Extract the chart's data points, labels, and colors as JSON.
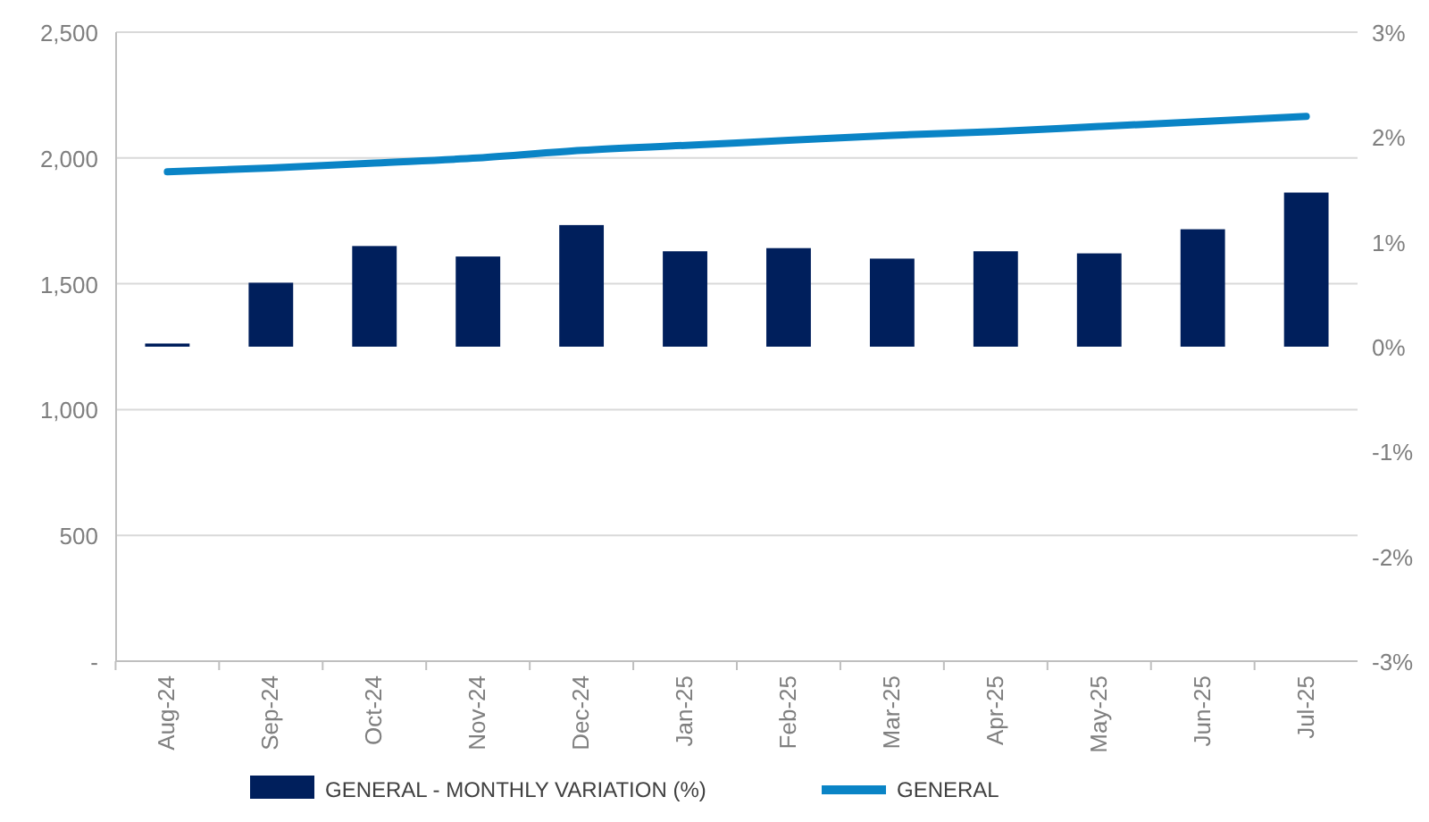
{
  "chart_data": {
    "type": "bar",
    "categories": [
      "Aug-24",
      "Sep-24",
      "Oct-24",
      "Nov-24",
      "Dec-24",
      "Jan-25",
      "Feb-25",
      "Mar-25",
      "Apr-25",
      "May-25",
      "Jun-25",
      "Jul-25"
    ],
    "series": [
      {
        "name": "GENERAL - MONTHLY VARIATION (%)",
        "color": "#001f5c",
        "axis": "y2",
        "values": [
          0.03,
          0.61,
          0.96,
          0.86,
          1.16,
          0.91,
          0.94,
          0.84,
          0.91,
          0.89,
          1.12,
          1.47
        ]
      },
      {
        "name": "GENERAL",
        "type": "line",
        "color": "#0a84c6",
        "values": [
          1945,
          1960,
          1980,
          2000,
          2030,
          2050,
          2070,
          2090,
          2105,
          2125,
          2145,
          2165
        ]
      }
    ],
    "ylim": [
      0,
      2500
    ],
    "yticks": [
      {
        "value": 0,
        "label": "-"
      },
      {
        "value": 500,
        "label": "500"
      },
      {
        "value": 1000,
        "label": "1,000"
      },
      {
        "value": 1500,
        "label": "1,500"
      },
      {
        "value": 2000,
        "label": "2,000"
      },
      {
        "value": 2500,
        "label": "2,500"
      }
    ],
    "y2lim": [
      -3,
      3
    ],
    "y2ticks": [
      {
        "value": -3,
        "label": "-3%"
      },
      {
        "value": -2,
        "label": "-2%"
      },
      {
        "value": -1,
        "label": "-1%"
      },
      {
        "value": 0,
        "label": "0%"
      },
      {
        "value": 1,
        "label": "1%"
      },
      {
        "value": 2,
        "label": "2%"
      },
      {
        "value": 3,
        "label": "3%"
      }
    ],
    "grid": "y",
    "legend": "bottom",
    "marker": "none",
    "line_style": "solid"
  }
}
